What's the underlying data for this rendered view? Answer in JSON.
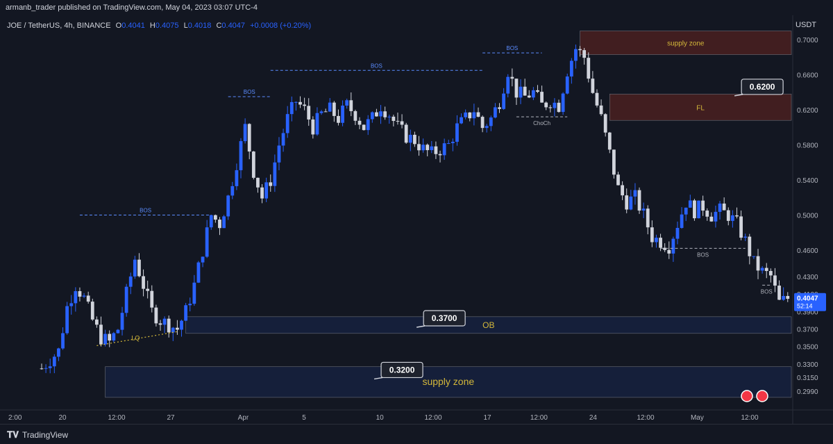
{
  "header": {
    "published_by": "armanb_trader published on TradingView.com, May 04, 2023 03:07 UTC-4"
  },
  "legend": {
    "symbol": "JOE / TetherUS, 4h, BINANCE",
    "open_label": "O",
    "open": "0.4041",
    "high_label": "H",
    "high": "0.4075",
    "low_label": "L",
    "low": "0.4018",
    "close_label": "C",
    "close": "0.4047",
    "change": "+0.0008 (+0.20%)"
  },
  "footer": {
    "brand": "TradingView"
  },
  "colors": {
    "background": "#131722",
    "bull": "#2962ff",
    "bear": "#d1d4dc",
    "supply_fill": "#4a2020",
    "demand_fill": "#16213e",
    "zone_label": "#d4b83a",
    "bos_blue": "#5b8cff"
  },
  "chart_data": {
    "type": "candlestick",
    "title": "JOE / TetherUS, 4h, BINANCE",
    "y_unit": "USDT",
    "ylim": [
      0.284,
      0.712
    ],
    "price_ticks": [
      "0.7000",
      "0.6600",
      "0.6200",
      "0.5800",
      "0.5400",
      "0.5000",
      "0.4600",
      "0.4300",
      "0.4100",
      "0.3900",
      "0.3700",
      "0.3500",
      "0.3300",
      "0.3150",
      "0.2990"
    ],
    "x_ticks": [
      "2:00",
      "20",
      "12:00",
      "27",
      "Apr",
      "5",
      "10",
      "12:00",
      "17",
      "12:00",
      "24",
      "12:00",
      "May",
      "12:00"
    ],
    "current_price": {
      "value": "0.4047",
      "countdown": "52:14"
    },
    "close_path": [
      [
        0,
        0.325
      ],
      [
        4,
        0.345
      ],
      [
        6,
        0.395
      ],
      [
        8,
        0.42
      ],
      [
        10,
        0.405
      ],
      [
        12,
        0.38
      ],
      [
        14,
        0.36
      ],
      [
        16,
        0.355
      ],
      [
        18,
        0.37
      ],
      [
        20,
        0.41
      ],
      [
        22,
        0.45
      ],
      [
        24,
        0.42
      ],
      [
        26,
        0.39
      ],
      [
        28,
        0.38
      ],
      [
        30,
        0.375
      ],
      [
        32,
        0.37
      ],
      [
        34,
        0.39
      ],
      [
        36,
        0.42
      ],
      [
        38,
        0.46
      ],
      [
        40,
        0.5
      ],
      [
        42,
        0.49
      ],
      [
        44,
        0.52
      ],
      [
        46,
        0.56
      ],
      [
        48,
        0.6
      ],
      [
        50,
        0.55
      ],
      [
        52,
        0.52
      ],
      [
        54,
        0.54
      ],
      [
        56,
        0.58
      ],
      [
        58,
        0.61
      ],
      [
        60,
        0.63
      ],
      [
        62,
        0.62
      ],
      [
        64,
        0.6
      ],
      [
        66,
        0.615
      ],
      [
        68,
        0.62
      ],
      [
        70,
        0.61
      ],
      [
        72,
        0.625
      ],
      [
        74,
        0.615
      ],
      [
        76,
        0.6
      ],
      [
        78,
        0.61
      ],
      [
        80,
        0.625
      ],
      [
        82,
        0.615
      ],
      [
        84,
        0.6
      ],
      [
        86,
        0.59
      ],
      [
        88,
        0.585
      ],
      [
        90,
        0.575
      ],
      [
        92,
        0.57
      ],
      [
        94,
        0.575
      ],
      [
        96,
        0.58
      ],
      [
        98,
        0.6
      ],
      [
        100,
        0.61
      ],
      [
        102,
        0.62
      ],
      [
        104,
        0.6
      ],
      [
        106,
        0.61
      ],
      [
        108,
        0.63
      ],
      [
        110,
        0.665
      ],
      [
        112,
        0.64
      ],
      [
        114,
        0.635
      ],
      [
        116,
        0.64
      ],
      [
        118,
        0.625
      ],
      [
        120,
        0.63
      ],
      [
        122,
        0.625
      ],
      [
        124,
        0.665
      ],
      [
        126,
        0.69
      ],
      [
        128,
        0.68
      ],
      [
        130,
        0.64
      ],
      [
        132,
        0.61
      ],
      [
        134,
        0.57
      ],
      [
        136,
        0.53
      ],
      [
        138,
        0.515
      ],
      [
        140,
        0.52
      ],
      [
        142,
        0.5
      ],
      [
        144,
        0.475
      ],
      [
        146,
        0.47
      ],
      [
        148,
        0.465
      ],
      [
        150,
        0.49
      ],
      [
        152,
        0.515
      ],
      [
        154,
        0.505
      ],
      [
        156,
        0.51
      ],
      [
        158,
        0.5
      ],
      [
        160,
        0.505
      ],
      [
        162,
        0.5
      ],
      [
        164,
        0.49
      ],
      [
        166,
        0.47
      ],
      [
        168,
        0.445
      ],
      [
        170,
        0.435
      ],
      [
        172,
        0.43
      ],
      [
        174,
        0.4
      ],
      [
        176,
        0.405
      ]
    ],
    "zones": [
      {
        "label": "supply zone",
        "top": 0.71,
        "bottom": 0.683,
        "from": 127,
        "kind": "supply"
      },
      {
        "label": "FL",
        "top": 0.638,
        "bottom": 0.608,
        "from": 134,
        "kind": "supply"
      },
      {
        "label": "OB",
        "top": 0.384,
        "bottom": 0.365,
        "from": 34,
        "kind": "demand"
      },
      {
        "label": "supply zone",
        "top": 0.327,
        "bottom": 0.292,
        "from": 15,
        "kind": "demand"
      }
    ],
    "bos_marks": [
      {
        "label": "BOS",
        "level": 0.5,
        "from": 9,
        "to": 40,
        "text_color": "blue"
      },
      {
        "label": "BOS",
        "level": 0.635,
        "from": 44,
        "to": 54,
        "text_color": "blue"
      },
      {
        "label": "BOS",
        "level": 0.665,
        "from": 54,
        "to": 104,
        "text_color": "blue"
      },
      {
        "label": "BOS",
        "level": 0.685,
        "from": 104,
        "to": 118,
        "text_color": "blue"
      },
      {
        "label": "ChoCh",
        "level": 0.612,
        "from": 112,
        "to": 124,
        "text_color": "grey"
      },
      {
        "label": "BOS",
        "level": 0.462,
        "from": 146,
        "to": 166,
        "text_color": "grey"
      },
      {
        "label": "BOS",
        "level": 0.42,
        "from": 170,
        "to": 172,
        "text_color": "grey"
      }
    ],
    "callouts": [
      {
        "label": "0.6200",
        "at": 170,
        "price": 0.655
      },
      {
        "label": "0.3700",
        "at": 95,
        "price": 0.391
      },
      {
        "label": "0.3200",
        "at": 85,
        "price": 0.332
      }
    ],
    "lq_label": "LQ"
  }
}
